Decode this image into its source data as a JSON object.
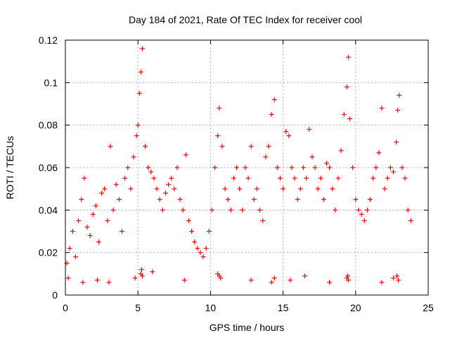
{
  "chart_data": {
    "type": "scatter",
    "title": "Day 184 of 2021, Rate Of TEC Index for receiver cool",
    "xlabel": "GPS time / hours",
    "ylabel": "ROTI / TECUs",
    "xlim": [
      0,
      25
    ],
    "ylim": [
      0,
      0.12
    ],
    "xticks": [
      0,
      5,
      10,
      15,
      20,
      25
    ],
    "yticks": [
      0,
      0.02,
      0.04,
      0.06,
      0.08,
      0.1,
      0.12
    ],
    "xtick_labels": [
      "0",
      "5",
      "10",
      "15",
      "20",
      "25"
    ],
    "ytick_labels": [
      "0",
      "0.02",
      "0.04",
      "0.06",
      "0.08",
      "0.1",
      "0.12"
    ],
    "grid": true,
    "marker": "+",
    "color": "#ff0000",
    "series": [
      {
        "x": [
          0.1,
          0.3,
          0.5,
          0.7,
          0.9,
          1.1,
          1.3,
          1.5,
          1.7,
          1.9,
          2.1,
          2.3,
          2.5,
          2.7,
          2.9,
          3.1,
          3.3,
          3.5,
          3.7,
          3.9,
          4.1,
          4.3,
          4.5,
          4.7,
          4.9,
          5.0,
          5.1,
          5.2,
          5.3,
          5.5,
          5.7,
          5.9,
          6.1,
          6.3,
          6.5,
          6.7,
          6.9,
          7.1,
          7.3,
          7.5,
          7.7,
          7.9,
          8.1,
          8.3,
          8.5,
          8.7,
          8.9,
          9.1,
          9.3,
          9.5,
          9.7,
          9.9,
          10.1,
          10.3,
          10.5,
          10.6,
          10.8,
          11.0,
          11.2,
          11.4,
          11.6,
          11.8,
          12.0,
          12.2,
          12.4,
          12.6,
          12.8,
          13.0,
          13.2,
          13.4,
          13.6,
          13.8,
          14.0,
          14.2,
          14.4,
          14.6,
          14.8,
          15.0,
          15.2,
          15.4,
          15.6,
          15.8,
          16.0,
          16.2,
          16.4,
          16.6,
          16.8,
          17.0,
          17.2,
          17.4,
          17.6,
          17.8,
          18.0,
          18.2,
          18.4,
          18.6,
          18.8,
          19.0,
          19.2,
          19.4,
          19.5,
          19.6,
          19.8,
          20.0,
          20.2,
          20.4,
          20.6,
          20.8,
          21.0,
          21.2,
          21.4,
          21.6,
          21.8,
          22.0,
          22.2,
          22.4,
          22.6,
          22.8,
          22.9,
          23.0,
          23.2,
          23.4,
          23.6,
          23.8,
          0.2,
          1.2,
          2.2,
          3.0,
          4.8,
          5.2,
          5.25,
          5.3,
          6.0,
          8.2,
          10.5,
          10.6,
          10.7,
          12.8,
          14.2,
          14.4,
          15.5,
          16.5,
          18.2,
          19.4,
          19.45,
          19.5,
          21.8,
          22.6,
          22.85,
          22.95
        ],
        "y": [
          0.015,
          0.022,
          0.03,
          0.018,
          0.035,
          0.045,
          0.055,
          0.032,
          0.028,
          0.038,
          0.042,
          0.025,
          0.048,
          0.05,
          0.035,
          0.07,
          0.04,
          0.052,
          0.045,
          0.03,
          0.055,
          0.06,
          0.05,
          0.065,
          0.075,
          0.08,
          0.095,
          0.105,
          0.116,
          0.07,
          0.06,
          0.058,
          0.055,
          0.05,
          0.045,
          0.04,
          0.048,
          0.052,
          0.055,
          0.05,
          0.06,
          0.045,
          0.04,
          0.066,
          0.035,
          0.03,
          0.025,
          0.022,
          0.02,
          0.018,
          0.022,
          0.03,
          0.04,
          0.06,
          0.075,
          0.088,
          0.07,
          0.05,
          0.045,
          0.04,
          0.055,
          0.06,
          0.05,
          0.04,
          0.06,
          0.055,
          0.07,
          0.045,
          0.05,
          0.04,
          0.035,
          0.065,
          0.07,
          0.085,
          0.092,
          0.06,
          0.055,
          0.05,
          0.077,
          0.075,
          0.06,
          0.055,
          0.045,
          0.05,
          0.06,
          0.055,
          0.078,
          0.065,
          0.06,
          0.05,
          0.055,
          0.045,
          0.062,
          0.06,
          0.05,
          0.04,
          0.055,
          0.068,
          0.085,
          0.098,
          0.112,
          0.083,
          0.06,
          0.045,
          0.04,
          0.038,
          0.035,
          0.04,
          0.045,
          0.055,
          0.06,
          0.067,
          0.088,
          0.05,
          0.055,
          0.06,
          0.058,
          0.072,
          0.087,
          0.094,
          0.06,
          0.055,
          0.04,
          0.035,
          0.008,
          0.006,
          0.007,
          0.006,
          0.008,
          0.01,
          0.012,
          0.009,
          0.011,
          0.007,
          0.01,
          0.009,
          0.008,
          0.007,
          0.006,
          0.008,
          0.007,
          0.009,
          0.006,
          0.008,
          0.009,
          0.007,
          0.006,
          0.008,
          0.009,
          0.007
        ]
      }
    ]
  }
}
